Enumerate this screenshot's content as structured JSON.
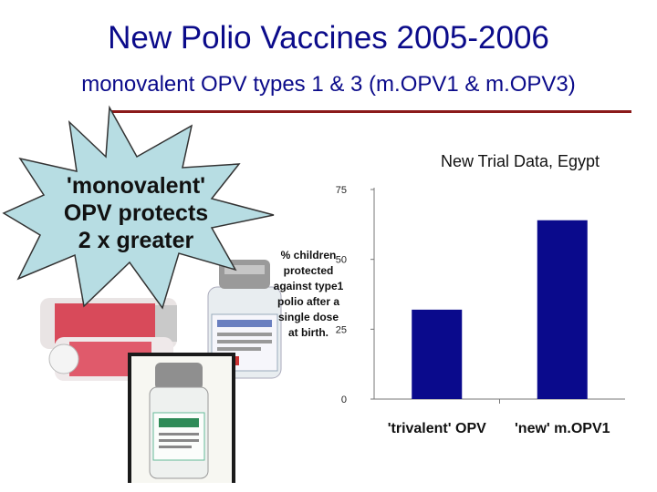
{
  "slide": {
    "title": "New Polio Vaccines 2005-2006",
    "subtitle": "monovalent OPV types 1 & 3 (m.OPV1 & m.OPV3)"
  },
  "callout": {
    "lines": [
      "'monovalent'",
      "OPV protects",
      "2 x greater"
    ],
    "fill_color": "#b7dde3"
  },
  "photo": {
    "icon": "vaccine-vials-photo"
  },
  "chart_data": {
    "type": "bar",
    "title": "New Trial Data, Egypt",
    "ylabel_lines": [
      "% children",
      "protected",
      "against type1",
      "polio after a",
      "single dose",
      "at birth."
    ],
    "categories": [
      "'trivalent' OPV",
      "'new' m.OPV1"
    ],
    "values": [
      32,
      64
    ],
    "ylim": [
      0,
      75
    ],
    "yticks": [
      0,
      25,
      50,
      75
    ],
    "bar_color": "#0a0a8c",
    "grid": false
  }
}
